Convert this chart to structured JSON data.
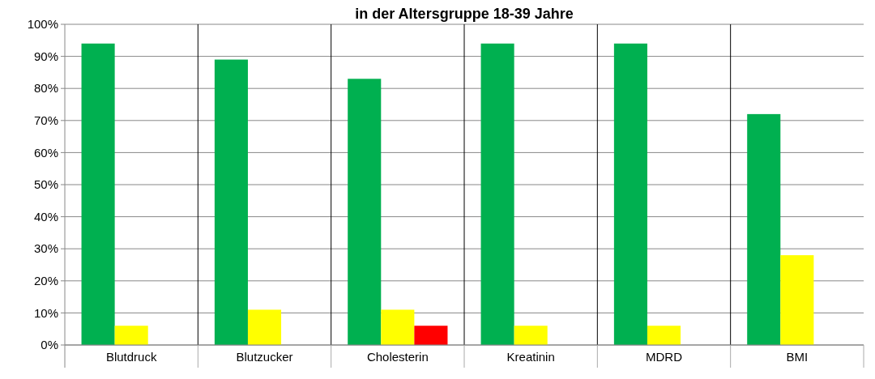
{
  "chart_data": {
    "type": "bar",
    "title": "in der Altersgruppe 18-39 Jahre",
    "categories": [
      "Blutdruck",
      "Blutzucker",
      "Cholesterin",
      "Kreatinin",
      "MDRD",
      "BMI"
    ],
    "series": [
      {
        "color": "#00b050",
        "values": [
          94,
          89,
          83,
          94,
          94,
          72
        ]
      },
      {
        "color": "#ffff00",
        "values": [
          6,
          11,
          11,
          6,
          6,
          28
        ]
      },
      {
        "color": "#ff0000",
        "values": [
          null,
          null,
          6,
          null,
          null,
          null
        ]
      }
    ],
    "ylim": [
      0,
      100
    ],
    "yticks": [
      {
        "value": 0,
        "label": "0%"
      },
      {
        "value": 10,
        "label": "10%"
      },
      {
        "value": 20,
        "label": "20%"
      },
      {
        "value": 30,
        "label": "30%"
      },
      {
        "value": 40,
        "label": "40%"
      },
      {
        "value": 50,
        "label": "50%"
      },
      {
        "value": 60,
        "label": "60%"
      },
      {
        "value": 70,
        "label": "70%"
      },
      {
        "value": 80,
        "label": "80%"
      },
      {
        "value": 90,
        "label": "90%"
      },
      {
        "value": 100,
        "label": "100%"
      }
    ],
    "grid": true
  }
}
